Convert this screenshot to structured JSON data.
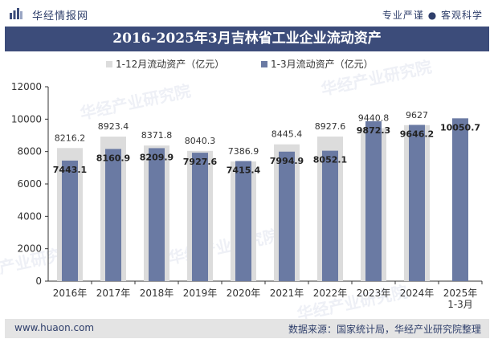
{
  "header": {
    "brand": "华经情报网",
    "tagline": "专业严谨 ● 客观科学"
  },
  "title": "2016-2025年3月吉林省工业企业流动资产",
  "footer": {
    "site": "www.huaon.com",
    "source": "数据来源：国家统计局，华经产业研究院整理"
  },
  "watermark": "华经产业研究院",
  "colors": {
    "title_bg": "#3c4c7a",
    "series_full_year": "#dcdcdc",
    "series_q1": "#6a7aa3",
    "footer_bg": "#e4e4e4"
  },
  "chart_data": {
    "type": "bar",
    "categories": [
      "2016年",
      "2017年",
      "2018年",
      "2019年",
      "2020年",
      "2021年",
      "2022年",
      "2023年",
      "2024年",
      "2025年\n1-3月"
    ],
    "series": [
      {
        "name": "1-12月流动资产（亿元）",
        "values": [
          8216.2,
          8923.4,
          8371.8,
          8040.3,
          7386.9,
          8445.4,
          8927.6,
          9440.8,
          9627,
          null
        ],
        "labels": [
          "8216.2",
          "8923.4",
          "8371.8",
          "8040.3",
          "7386.9",
          "8445.4",
          "8927.6",
          "9440.8",
          "9627",
          ""
        ]
      },
      {
        "name": "1-3月流动资产（亿元）",
        "values": [
          7443.1,
          8160.9,
          8209.9,
          7927.6,
          7415.4,
          7994.9,
          8052.1,
          9872.3,
          9646.2,
          10050.7
        ],
        "labels": [
          "7443.1",
          "8160.9",
          "8209.9",
          "7927.6",
          "7415.4",
          "7994.9",
          "8052.1",
          "9872.3",
          "9646.2",
          "10050.7"
        ]
      }
    ],
    "ylim": [
      0,
      12000
    ],
    "yticks": [
      0,
      2000,
      4000,
      6000,
      8000,
      10000,
      12000
    ],
    "legend": "top-center",
    "grid": false
  }
}
